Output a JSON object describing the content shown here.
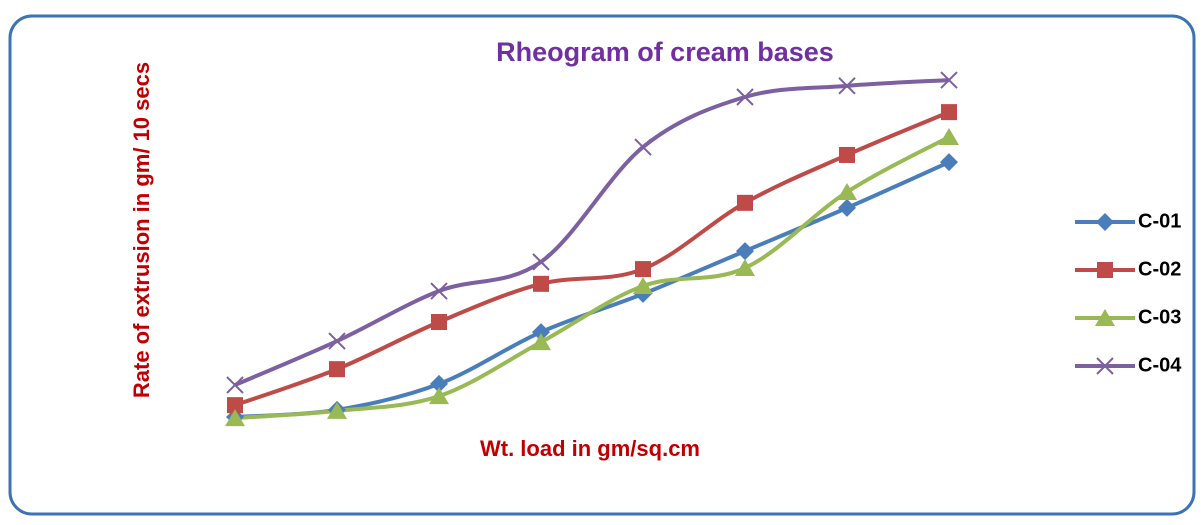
{
  "chart_data": {
    "type": "line",
    "title": "Rheogram of cream bases",
    "x_label": "Wt. load in gm/sq.cm",
    "y_label": "Rate of extrusion in gm/ 10 secs",
    "categories": [
      null,
      null,
      null,
      null,
      null,
      null,
      null,
      null
    ],
    "ylim": [
      0,
      100
    ],
    "smooth": true,
    "legend": "right",
    "series": [
      {
        "name": "C-01",
        "color": "#4a7ebb",
        "marker": "diamond",
        "values": [
          3.6,
          5.6,
          12.8,
          27.2,
          37.8,
          49.7,
          61.7,
          74.4
        ]
      },
      {
        "name": "C-02",
        "color": "#be4b48",
        "marker": "square",
        "values": [
          6.9,
          16.9,
          30.0,
          40.6,
          44.7,
          63.1,
          76.4,
          88.3
        ]
      },
      {
        "name": "C-03",
        "color": "#98b954",
        "marker": "triangle",
        "values": [
          3.3,
          5.3,
          9.4,
          24.4,
          40.0,
          45.0,
          66.1,
          81.4
        ]
      },
      {
        "name": "C-04",
        "color": "#7d60a0",
        "marker": "x",
        "values": [
          12.5,
          24.7,
          38.6,
          46.7,
          78.6,
          92.5,
          95.6,
          97.2
        ]
      }
    ]
  }
}
